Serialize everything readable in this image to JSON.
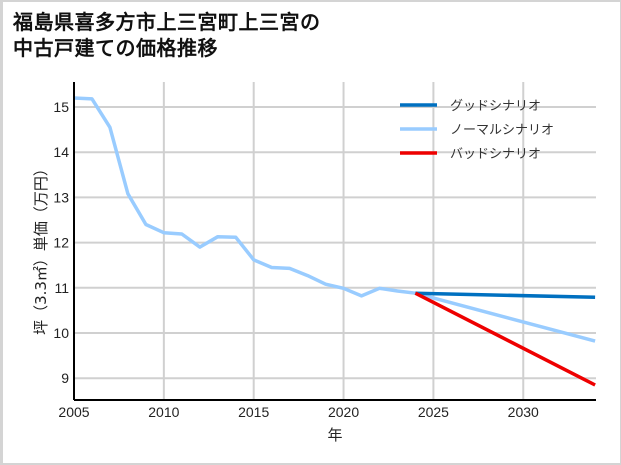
{
  "title_line1": "福島県喜多方市上三宮町上三宮の",
  "title_line2": "中古戸建ての価格推移",
  "chart_data": {
    "type": "line",
    "title": "福島県喜多方市上三宮町上三宮の中古戸建ての価格推移",
    "xlabel": "年",
    "ylabel": "坪（3.3㎡）単価（万円）",
    "xlim": [
      2005,
      2034
    ],
    "ylim": [
      8.5,
      15.5
    ],
    "xticks": [
      2005,
      2010,
      2015,
      2020,
      2025,
      2030
    ],
    "yticks": [
      9,
      10,
      11,
      12,
      13,
      14,
      15
    ],
    "grid": true,
    "legend_position": "upper right",
    "series": [
      {
        "name": "グッドシナリオ",
        "color": "#0070c0",
        "x": [
          2024,
          2034
        ],
        "y": [
          10.88,
          10.79
        ]
      },
      {
        "name": "ノーマルシナリオ",
        "color": "#99ccff",
        "x": [
          2005,
          2006,
          2007,
          2008,
          2009,
          2010,
          2011,
          2012,
          2013,
          2014,
          2015,
          2016,
          2017,
          2018,
          2019,
          2020,
          2021,
          2022,
          2023,
          2024,
          2034
        ],
        "y": [
          15.2,
          15.18,
          14.55,
          13.08,
          12.4,
          12.22,
          12.19,
          11.9,
          12.13,
          12.12,
          11.62,
          11.45,
          11.43,
          11.27,
          11.08,
          10.99,
          10.82,
          10.99,
          10.93,
          10.88,
          9.82
        ]
      },
      {
        "name": "バッドシナリオ",
        "color": "#ee0000",
        "x": [
          2024,
          2034
        ],
        "y": [
          10.88,
          8.85
        ]
      }
    ]
  },
  "legend": [
    {
      "label": "グッドシナリオ",
      "color": "#0070c0"
    },
    {
      "label": "ノーマルシナリオ",
      "color": "#99ccff"
    },
    {
      "label": "バッドシナリオ",
      "color": "#ee0000"
    }
  ]
}
